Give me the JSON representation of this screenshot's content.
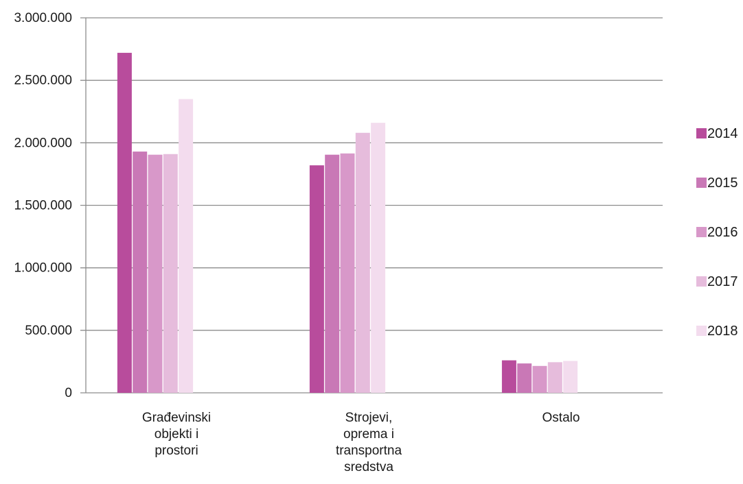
{
  "chart_data": {
    "type": "bar",
    "categories": [
      [
        "Građevinski",
        "objekti i",
        "prostori"
      ],
      [
        "Strojevi,",
        "oprema i",
        "transportna",
        "sredstva"
      ],
      [
        "Ostalo"
      ]
    ],
    "series": [
      {
        "name": "2014",
        "color": "#b84c9c",
        "values": [
          2720000,
          1820000,
          260000
        ]
      },
      {
        "name": "2015",
        "color": "#c978b6",
        "values": [
          1930000,
          1905000,
          235000
        ]
      },
      {
        "name": "2016",
        "color": "#d898c9",
        "values": [
          1905000,
          1915000,
          215000
        ]
      },
      {
        "name": "2017",
        "color": "#e6bcdc",
        "values": [
          1910000,
          2080000,
          245000
        ]
      },
      {
        "name": "2018",
        "color": "#f3dcee",
        "values": [
          2350000,
          2160000,
          255000
        ]
      }
    ],
    "yticks": [
      "0",
      "500.000",
      "1.000.000",
      "1.500.000",
      "2.000.000",
      "2.500.000",
      "3.000.000"
    ],
    "ylim": [
      0,
      3000000
    ],
    "grid": true,
    "legend_position": "right"
  }
}
